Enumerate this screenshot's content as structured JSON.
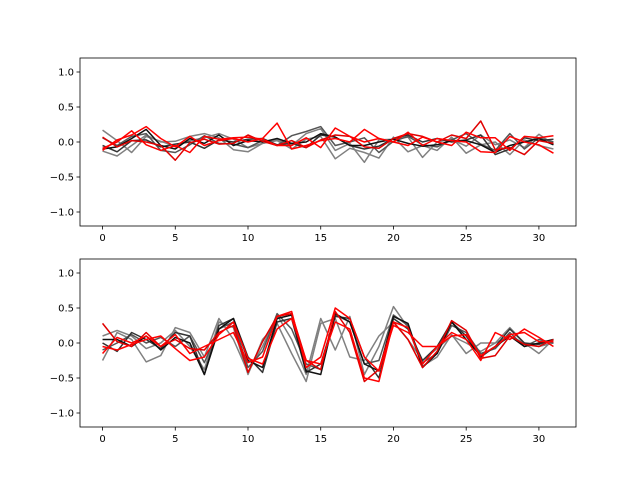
{
  "chart_data": [
    {
      "type": "line",
      "xlim": [
        -1.55,
        32.55
      ],
      "ylim": [
        -1.2,
        1.2
      ],
      "xticks": [
        0,
        5,
        10,
        15,
        20,
        25,
        30
      ],
      "yticks": [
        -1.0,
        -0.5,
        0.0,
        0.5,
        1.0
      ],
      "ytick_labels": [
        "−1.0",
        "−0.5",
        "0.0",
        "0.5",
        "1.0"
      ],
      "grid": false,
      "series": [
        {
          "color": "#808080",
          "values": [
            0.17,
            0.02,
            -0.15,
            0.08,
            0.01,
            -0.06,
            0.02,
            0.06,
            0.12,
            0.04,
            -0.08,
            -0.02,
            0.03,
            -0.05,
            0.12,
            0.19,
            -0.12,
            -0.02,
            -0.29,
            0.03,
            0.04,
            0.07,
            -0.22,
            0.0,
            0.04,
            -0.06,
            0.1,
            -0.04,
            0.03,
            -0.08,
            0.11,
            -0.03
          ]
        },
        {
          "color": "#808080",
          "values": [
            -0.13,
            -0.2,
            -0.05,
            0.1,
            0.0,
            0.01,
            0.08,
            0.12,
            0.06,
            -0.11,
            -0.14,
            -0.02,
            0.02,
            -0.1,
            0.04,
            0.08,
            -0.24,
            -0.09,
            -0.15,
            -0.23,
            0.07,
            -0.14,
            -0.05,
            -0.12,
            0.07,
            -0.16,
            -0.04,
            0.0,
            -0.18,
            0.03,
            -0.05,
            -0.1
          ]
        },
        {
          "color": "#555555",
          "values": [
            0.06,
            -0.05,
            0.08,
            0.12,
            -0.12,
            -0.15,
            -0.04,
            0.09,
            -0.02,
            -0.03,
            -0.08,
            0.02,
            -0.05,
            0.09,
            0.15,
            0.22,
            -0.05,
            0.0,
            0.06,
            -0.15,
            0.01,
            0.08,
            -0.04,
            -0.07,
            0.03,
            0.12,
            -0.03,
            -0.12,
            0.12,
            -0.1,
            0.06,
            0.0
          ]
        },
        {
          "color": "#333333",
          "values": [
            -0.05,
            -0.14,
            0.02,
            0.03,
            -0.07,
            -0.03,
            0.0,
            -0.09,
            0.03,
            0.0,
            0.04,
            0.05,
            -0.04,
            -0.02,
            -0.08,
            0.1,
            0.07,
            -0.05,
            -0.1,
            -0.06,
            0.05,
            0.1,
            0.0,
            0.05,
            0.0,
            0.03,
            0.1,
            -0.18,
            -0.1,
            0.06,
            0.02,
            0.04
          ]
        },
        {
          "color": "#111111",
          "values": [
            -0.1,
            -0.07,
            0.05,
            0.18,
            -0.05,
            -0.1,
            0.05,
            -0.02,
            0.1,
            -0.05,
            0.02,
            0.0,
            0.05,
            -0.02,
            0.0,
            0.12,
            0.07,
            -0.05,
            -0.05,
            0.0,
            0.04,
            -0.02,
            -0.06,
            -0.04,
            0.02,
            0.02,
            -0.04,
            -0.15,
            -0.05,
            0.0,
            0.05,
            -0.04
          ]
        },
        {
          "color": "#e00000",
          "values": [
            0.07,
            -0.07,
            0.02,
            0.0,
            -0.05,
            -0.26,
            -0.01,
            0.04,
            -0.03,
            -0.02,
            0.1,
            0.01,
            -0.05,
            0.02,
            -0.08,
            0.03,
            0.1,
            0.08,
            -0.07,
            -0.09,
            0.05,
            0.12,
            0.08,
            0.0,
            0.1,
            0.05,
            0.3,
            -0.11,
            -0.08,
            -0.18,
            0.02,
            -0.02
          ]
        },
        {
          "color": "#ff0000",
          "values": [
            -0.12,
            0.03,
            0.1,
            0.22,
            0.05,
            -0.07,
            0.08,
            -0.05,
            0.02,
            0.05,
            0.0,
            0.05,
            0.27,
            -0.1,
            -0.05,
            0.02,
            0.05,
            0.0,
            0.18,
            0.05,
            0.0,
            0.14,
            -0.05,
            0.05,
            0.02,
            0.0,
            -0.14,
            -0.15,
            0.08,
            0.0,
            -0.04,
            -0.16
          ]
        },
        {
          "color": "#ff0000",
          "values": [
            -0.09,
            0.0,
            0.16,
            -0.04,
            -0.12,
            -0.05,
            -0.15,
            0.08,
            0.04,
            0.06,
            0.07,
            0.04,
            -0.05,
            -0.05,
            0.06,
            -0.08,
            0.2,
            0.08,
            0.0,
            0.05,
            0.0,
            -0.05,
            0.07,
            0.0,
            -0.05,
            0.14,
            0.06,
            0.06,
            -0.12,
            0.08,
            0.06,
            0.09
          ]
        }
      ]
    },
    {
      "type": "line",
      "xlim": [
        -1.55,
        32.55
      ],
      "ylim": [
        -1.2,
        1.2
      ],
      "xticks": [
        0,
        5,
        10,
        15,
        20,
        25,
        30
      ],
      "yticks": [
        -1.0,
        -0.5,
        0.0,
        0.5,
        1.0
      ],
      "ytick_labels": [
        "−1.0",
        "−0.5",
        "0.0",
        "0.5",
        "1.0"
      ],
      "grid": false,
      "series": [
        {
          "color": "#808080",
          "values": [
            -0.25,
            0.15,
            0.05,
            -0.27,
            -0.18,
            0.22,
            0.15,
            -0.2,
            0.35,
            0.05,
            -0.42,
            -0.05,
            0.4,
            0.05,
            -0.45,
            0.35,
            -0.1,
            0.38,
            -0.45,
            -0.05,
            0.52,
            0.22,
            -0.33,
            -0.2,
            0.12,
            -0.15,
            0.0,
            0.0,
            0.22,
            0.0,
            -0.15,
            0.05
          ]
        },
        {
          "color": "#808080",
          "values": [
            0.1,
            0.18,
            0.1,
            -0.08,
            0.0,
            0.18,
            -0.05,
            -0.38,
            0.3,
            0.22,
            -0.45,
            0.05,
            0.28,
            -0.15,
            -0.55,
            0.28,
            0.35,
            -0.2,
            -0.25,
            0.1,
            0.3,
            0.05,
            -0.25,
            -0.08,
            0.1,
            0.0,
            -0.12,
            0.0,
            0.1,
            0.0,
            -0.05,
            0.0
          ]
        },
        {
          "color": "#555555",
          "values": [
            -0.1,
            0.0,
            0.12,
            0.0,
            0.08,
            -0.05,
            0.1,
            -0.28,
            0.2,
            0.3,
            -0.35,
            -0.12,
            0.42,
            0.2,
            -0.3,
            -0.38,
            0.4,
            0.3,
            -0.3,
            -0.25,
            0.4,
            0.25,
            -0.28,
            -0.15,
            0.25,
            0.15,
            -0.15,
            -0.08,
            0.15,
            -0.05,
            0.05,
            0.0
          ]
        },
        {
          "color": "#333333",
          "values": [
            0.0,
            -0.12,
            0.15,
            0.05,
            -0.08,
            0.15,
            0.1,
            -0.45,
            0.25,
            0.35,
            -0.2,
            -0.42,
            0.3,
            0.35,
            -0.42,
            -0.3,
            0.38,
            0.35,
            -0.2,
            -0.5,
            0.35,
            0.2,
            -0.25,
            -0.05,
            0.3,
            0.1,
            -0.2,
            -0.05,
            0.2,
            0.0,
            -0.02,
            0.05
          ]
        },
        {
          "color": "#111111",
          "values": [
            0.05,
            0.05,
            -0.05,
            0.1,
            -0.1,
            0.08,
            0.0,
            -0.45,
            0.2,
            0.35,
            -0.25,
            -0.35,
            0.35,
            0.4,
            -0.4,
            -0.45,
            0.42,
            0.3,
            -0.3,
            -0.4,
            0.38,
            0.28,
            -0.35,
            -0.15,
            0.3,
            0.05,
            -0.18,
            -0.05,
            0.1,
            -0.05,
            0.0,
            0.05
          ]
        },
        {
          "color": "#e00000",
          "values": [
            0.28,
            0.02,
            -0.05,
            0.15,
            -0.05,
            0.05,
            -0.08,
            -0.1,
            0.15,
            0.25,
            -0.42,
            0.02,
            0.38,
            0.42,
            -0.25,
            -0.38,
            0.45,
            0.15,
            -0.55,
            -0.38,
            0.3,
            0.05,
            -0.35,
            -0.12,
            0.32,
            0.18,
            -0.22,
            -0.18,
            0.1,
            -0.02,
            -0.05,
            0.05
          ]
        },
        {
          "color": "#ff0000",
          "values": [
            -0.15,
            0.08,
            0.0,
            0.1,
            -0.05,
            0.12,
            -0.15,
            -0.05,
            0.05,
            0.15,
            -0.28,
            -0.2,
            0.38,
            0.45,
            -0.35,
            -0.2,
            0.5,
            0.35,
            -0.2,
            -0.4,
            0.25,
            0.15,
            -0.05,
            -0.05,
            0.1,
            0.12,
            -0.18,
            -0.05,
            0.12,
            0.15,
            0.02,
            0.02
          ]
        },
        {
          "color": "#ff0000",
          "values": [
            -0.05,
            -0.1,
            -0.02,
            0.05,
            0.1,
            -0.08,
            -0.25,
            -0.2,
            0.12,
            0.3,
            -0.22,
            -0.3,
            0.2,
            0.35,
            -0.25,
            -0.3,
            0.3,
            0.2,
            -0.5,
            -0.55,
            0.3,
            0.22,
            -0.3,
            -0.05,
            0.15,
            0.05,
            -0.25,
            0.15,
            0.05,
            0.2,
            0.08,
            -0.05
          ]
        }
      ]
    }
  ]
}
